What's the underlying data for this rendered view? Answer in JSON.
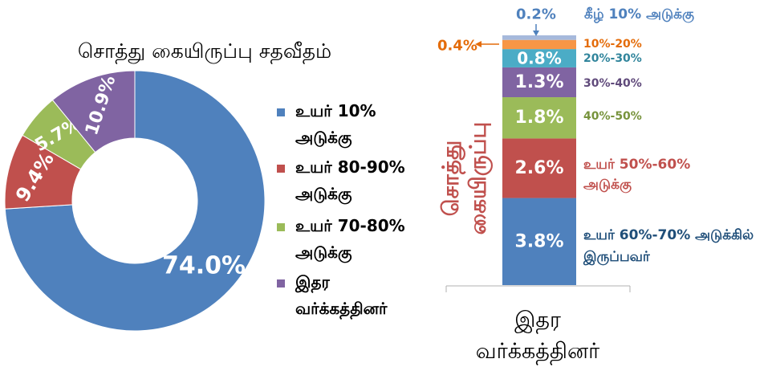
{
  "chart_data": [
    {
      "type": "pie",
      "title": "சொத்து கையிருப்பு சதவீதம்",
      "slices": [
        {
          "legend_label": "உயர் 10% அடுக்கு",
          "value": 74.0,
          "label": "74.0%",
          "color": "#4f81bd"
        },
        {
          "legend_label": "உயர் 80-90% அடுக்கு",
          "value": 9.4,
          "label": "9.4%",
          "color": "#c0504d"
        },
        {
          "legend_label": "உயர் 70-80% அடுக்கு",
          "value": 5.7,
          "label": "5.7%",
          "color": "#9bbb59"
        },
        {
          "legend_label": "இதர வர்க்கத்தினர்",
          "value": 10.9,
          "label": "10.9%",
          "color": "#8064a2"
        }
      ],
      "legend_position": "right"
    },
    {
      "type": "bar",
      "stacked": true,
      "category": "இதர வர்க்கத்தினர்",
      "ylabel": "சொத்து கையிருப்பு",
      "segments": [
        {
          "name": "உயர் 60%-70% அடுக்கில் இருப்பவர்",
          "value": 3.8,
          "label": "3.8%",
          "color": "#4f81bd",
          "text_color": "#1f4e79"
        },
        {
          "name": "உயர் 50%-60% அடுக்கு",
          "value": 2.6,
          "label": "2.6%",
          "color": "#c0504d",
          "text_color": "#c0504d"
        },
        {
          "name": "40%-50%",
          "value": 1.8,
          "label": "1.8%",
          "color": "#9bbb59",
          "text_color": "#77933c"
        },
        {
          "name": "30%-40%",
          "value": 1.3,
          "label": "1.3%",
          "color": "#8064a2",
          "text_color": "#604a7b"
        },
        {
          "name": "20%-30%",
          "value": 0.8,
          "label": "0.8%",
          "color": "#4bacc6",
          "text_color": "#31859c"
        },
        {
          "name": "10%-20%",
          "value": 0.4,
          "label": "0.4%",
          "color": "#f79646",
          "text_color": "#e46c0a"
        },
        {
          "name": "கீழ் 10% அடுக்கு",
          "value": 0.2,
          "label": "0.2%",
          "color": "#a6b9dc",
          "text_color": "#4f81bd"
        }
      ]
    }
  ]
}
